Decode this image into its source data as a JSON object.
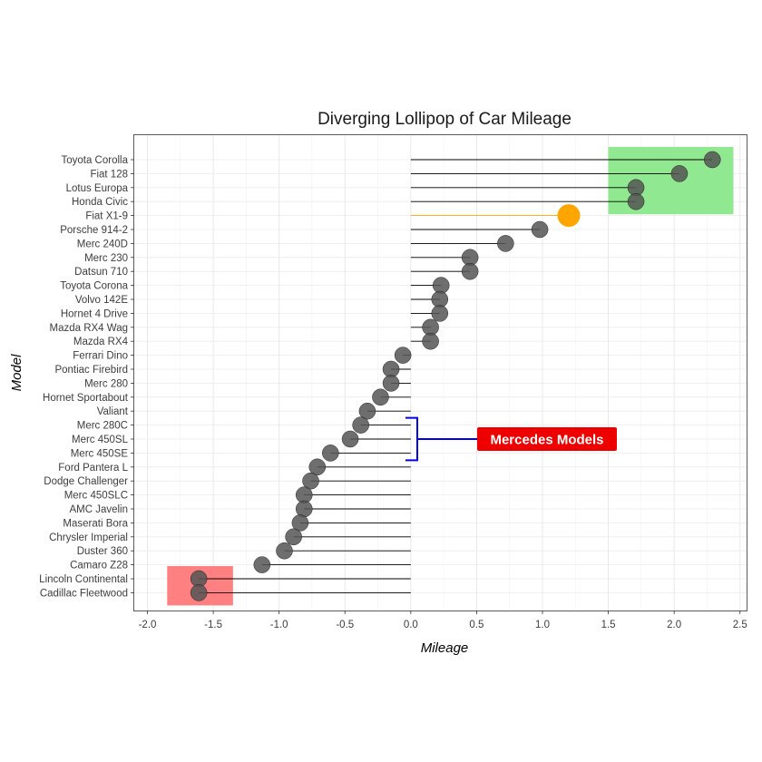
{
  "chart_data": {
    "type": "lollipop",
    "title": "Diverging Lollipop of Car Mileage",
    "xlabel": "Mileage",
    "ylabel": "Model",
    "xlim": [
      -2.1,
      2.55
    ],
    "xticks": [
      "-2.0",
      "-1.5",
      "-1.0",
      "-0.5",
      "0.0",
      "0.5",
      "1.0",
      "1.5",
      "2.0",
      "2.5"
    ],
    "grid": true,
    "categories": [
      "Toyota Corolla",
      "Fiat 128",
      "Lotus Europa",
      "Honda Civic",
      "Fiat X1-9",
      "Porsche 914-2",
      "Merc 240D",
      "Merc 230",
      "Datsun 710",
      "Toyota Corona",
      "Volvo 142E",
      "Hornet 4 Drive",
      "Mazda RX4 Wag",
      "Mazda RX4",
      "Ferrari Dino",
      "Pontiac Firebird",
      "Merc 280",
      "Hornet Sportabout",
      "Valiant",
      "Merc 280C",
      "Merc 450SL",
      "Merc 450SE",
      "Ford Pantera L",
      "Dodge Challenger",
      "Merc 450SLC",
      "AMC Javelin",
      "Maserati Bora",
      "Chrysler Imperial",
      "Duster 360",
      "Camaro Z28",
      "Lincoln Continental",
      "Cadillac Fleetwood"
    ],
    "values": [
      2.29,
      2.04,
      1.71,
      1.71,
      1.2,
      0.98,
      0.72,
      0.45,
      0.45,
      0.23,
      0.22,
      0.22,
      0.15,
      0.15,
      -0.06,
      -0.15,
      -0.15,
      -0.23,
      -0.33,
      -0.38,
      -0.46,
      -0.61,
      -0.71,
      -0.76,
      -0.81,
      -0.81,
      -0.84,
      -0.89,
      -0.96,
      -1.13,
      -1.61,
      -1.61
    ],
    "highlight": {
      "category": "Fiat X1-9",
      "color": "#FFA500"
    },
    "point_color": "#555555",
    "regions": [
      {
        "name": "high",
        "x": [
          1.5,
          2.45
        ],
        "from": "Toyota Corolla",
        "to": "Honda Civic",
        "color": "#90E890"
      },
      {
        "name": "low",
        "x": [
          -1.85,
          -1.35
        ],
        "from": "Lincoln Continental",
        "to": "Cadillac Fleetwood",
        "color": "#FF8080"
      }
    ],
    "annotation": {
      "text": "Mercedes Models",
      "from": "Merc 280C",
      "to": "Merc 450SE",
      "bracket_color": "#0000EE",
      "box_color": "#EE0000"
    }
  }
}
